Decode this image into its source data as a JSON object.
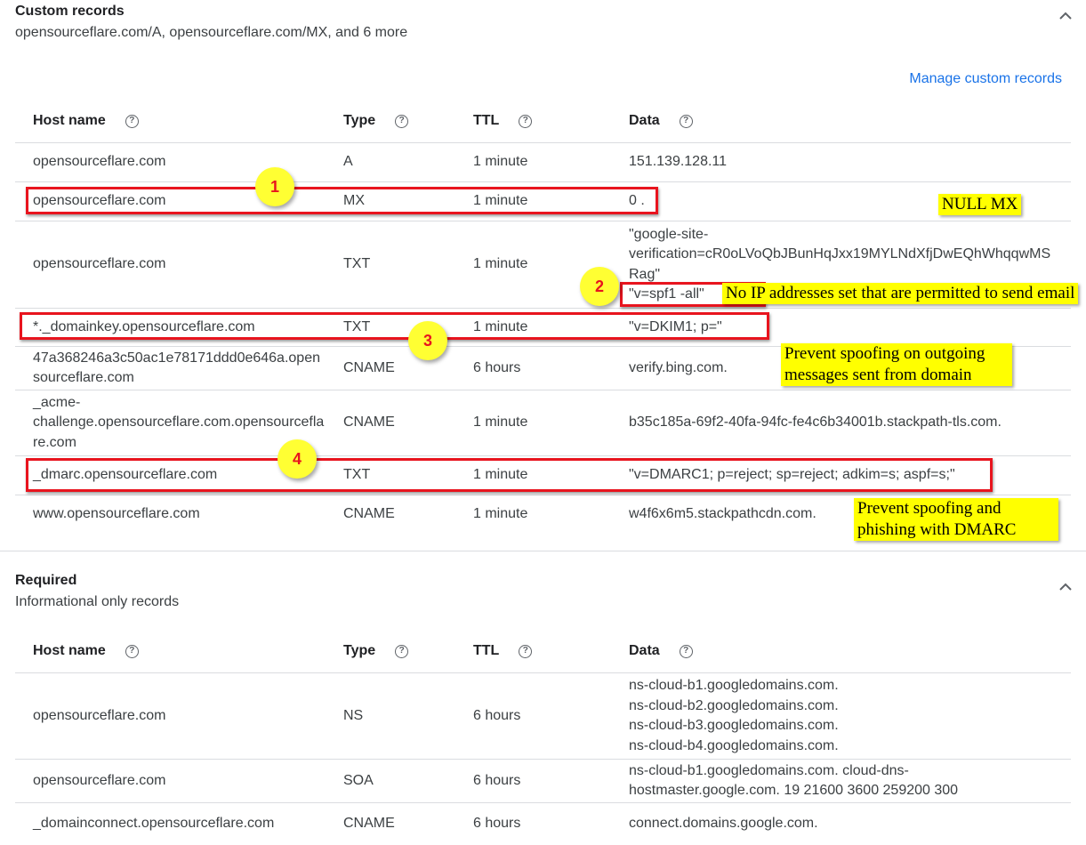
{
  "custom": {
    "title": "Custom records",
    "subtitle": "opensourceflare.com/A, opensourceflare.com/MX, and 6 more",
    "manage_link": "Manage custom records",
    "headers": [
      "Host name",
      "Type",
      "TTL",
      "Data"
    ],
    "rows": [
      {
        "host": "opensourceflare.com",
        "type": "A",
        "ttl": "1 minute",
        "data": "151.139.128.11"
      },
      {
        "host": "opensourceflare.com",
        "type": "MX",
        "ttl": "1 minute",
        "data": "0 ."
      },
      {
        "host": "opensourceflare.com",
        "type": "TXT",
        "ttl": "1 minute",
        "data": "\"google-site-verification=cR0oLVoQbJBunHqJxx19MYLNdXfjDwEQhWhqqwMSRag\"\n\"v=spf1 -all\""
      },
      {
        "host": "*._domainkey.opensourceflare.com",
        "type": "TXT",
        "ttl": "1 minute",
        "data": "\"v=DKIM1; p=\""
      },
      {
        "host": "47a368246a3c50ac1e78171ddd0e646a.opensourceflare.com",
        "type": "CNAME",
        "ttl": "6 hours",
        "data": "verify.bing.com."
      },
      {
        "host": "_acme-challenge.opensourceflare.com.opensourceflare.com",
        "type": "CNAME",
        "ttl": "1 minute",
        "data": "b35c185a-69f2-40fa-94fc-fe4c6b34001b.stackpath-tls.com."
      },
      {
        "host": "_dmarc.opensourceflare.com",
        "type": "TXT",
        "ttl": "1 minute",
        "data": "\"v=DMARC1; p=reject; sp=reject; adkim=s; aspf=s;\""
      },
      {
        "host": "www.opensourceflare.com",
        "type": "CNAME",
        "ttl": "1 minute",
        "data": "w4f6x6m5.stackpathcdn.com."
      }
    ]
  },
  "required": {
    "title": "Required",
    "subtitle": "Informational only records",
    "headers": [
      "Host name",
      "Type",
      "TTL",
      "Data"
    ],
    "rows": [
      {
        "host": "opensourceflare.com",
        "type": "NS",
        "ttl": "6 hours",
        "data": "ns-cloud-b1.googledomains.com.\nns-cloud-b2.googledomains.com.\nns-cloud-b3.googledomains.com.\nns-cloud-b4.googledomains.com."
      },
      {
        "host": "opensourceflare.com",
        "type": "SOA",
        "ttl": "6 hours",
        "data": "ns-cloud-b1.googledomains.com. cloud-dns-hostmaster.google.com. 19 21600 3600 259200 300"
      },
      {
        "host": "_domainconnect.opensourceflare.com",
        "type": "CNAME",
        "ttl": "6 hours",
        "data": "connect.domains.google.com."
      }
    ]
  },
  "annotations": {
    "numbers": [
      "1",
      "2",
      "3",
      "4"
    ],
    "notes": [
      "NULL MX",
      "No IP addresses set that are permitted to send email",
      "Prevent spoofing on outgoing messages sent from domain",
      "Prevent spoofing and phishing with DMARC"
    ],
    "box_color": "#e8141e",
    "highlight_color": "#ffff00"
  }
}
